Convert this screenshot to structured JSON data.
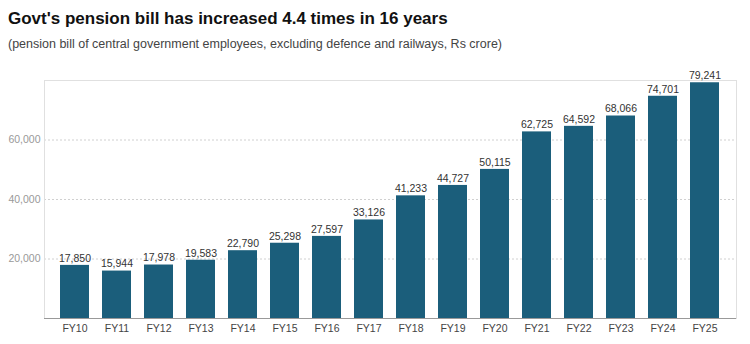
{
  "chart_data": {
    "type": "bar",
    "title": "Govt's pension bill has increased 4.4 times in 16 years",
    "subtitle": "(pension bill of central government employees, excluding defence and railways, Rs crore)",
    "categories": [
      "FY10",
      "FY11",
      "FY12",
      "FY13",
      "FY14",
      "FY15",
      "FY16",
      "FY17",
      "FY18",
      "FY19",
      "FY20",
      "FY21",
      "FY22",
      "FY23",
      "FY24",
      "FY25"
    ],
    "values": [
      17850,
      15944,
      17978,
      19583,
      22790,
      25298,
      27597,
      33126,
      41233,
      44727,
      50115,
      62725,
      64592,
      68066,
      74701,
      79241
    ],
    "value_labels": [
      "17,850",
      "15,944",
      "17,978",
      "19,583",
      "22,790",
      "25,298",
      "27,597",
      "33,126",
      "41,233",
      "44,727",
      "50,115",
      "62,725",
      "64,592",
      "68,066",
      "74,701",
      "79,241"
    ],
    "color": "#1b5e7b",
    "ylim": [
      0,
      80000
    ],
    "yticks": [
      {
        "value": 20000,
        "label": "20,000"
      },
      {
        "value": 40000,
        "label": "40,000"
      },
      {
        "value": 60000,
        "label": "60,000"
      }
    ],
    "grid": true,
    "data_labels": true
  }
}
